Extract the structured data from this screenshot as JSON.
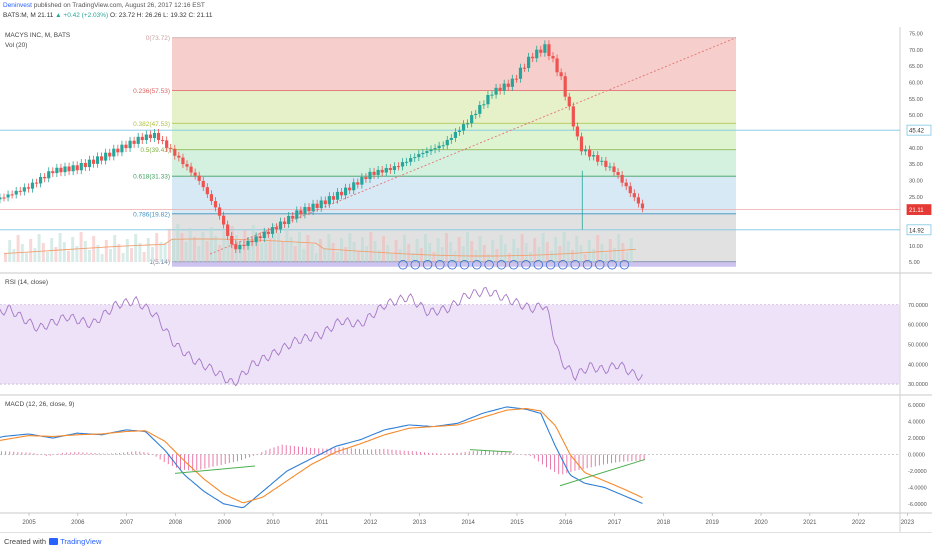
{
  "header": {
    "author": "Deninvest",
    "published_text": "published on TradingView.com, August 26, 2017 12:16 EST",
    "symbol": "BATS:M, M",
    "last": "21.11",
    "change": "▲ +0.42 (+2.03%)",
    "ohlc": "O: 23.72 H: 26.26 L: 19.32 C: 21.11"
  },
  "panes": {
    "price_title": "MACYS INC, M, BATS",
    "vol_title": "Vol (20)",
    "rsi_title": "RSI (14, close)",
    "macd_title": "MACD (12, 26, close, 9)"
  },
  "footer": {
    "created": "Created with",
    "brand": "TradingView"
  },
  "colors": {
    "up": "#26a69a",
    "down": "#ef5350",
    "rsi_line": "#a678c7",
    "rsi_band": "#e9dbf5",
    "macd_line": "#2f7fd6",
    "signal_line": "#f58a2c",
    "hist": "#e86ca0",
    "trend": "#4caf50",
    "h_line": "#7ec8e3",
    "price_marker": "#e53935"
  },
  "chart_data": [
    {
      "type": "candlestick",
      "title": "MACYS INC, M, BATS",
      "x_ticks": [
        "2005",
        "2006",
        "2007",
        "2008",
        "2009",
        "2010",
        "2011",
        "2012",
        "2013",
        "2014",
        "2015",
        "2016",
        "2017",
        "2018",
        "2019",
        "2020",
        "2021",
        "2022",
        "2023"
      ],
      "y_ticks": [
        5,
        10,
        15,
        20,
        25,
        30,
        35,
        40,
        45,
        50,
        55,
        60,
        65,
        70,
        75
      ],
      "ylim": [
        2,
        77
      ],
      "last_price": 21.11,
      "markers": [
        {
          "label": "45.42",
          "value": 45.42
        },
        {
          "label": "21.11",
          "value": 21.11
        },
        {
          "label": "14.92",
          "value": 14.92
        }
      ],
      "fib_levels": [
        {
          "label": "0(73.72)",
          "value": 73.72
        },
        {
          "label": "0.236(57.53)",
          "value": 57.53
        },
        {
          "label": "0.382(47.53)",
          "value": 47.53
        },
        {
          "label": "0.5(39.43)",
          "value": 39.43
        },
        {
          "label": "0.618(31.33)",
          "value": 31.33
        },
        {
          "label": "0.786(19.82)",
          "value": 19.82
        },
        {
          "label": "1(5.14)",
          "value": 5.14
        }
      ],
      "close_series": {
        "x": [
          2004.0,
          2004.5,
          2005.0,
          2005.5,
          2006.0,
          2006.5,
          2006.9,
          2007.3,
          2007.6,
          2008.0,
          2008.5,
          2008.9,
          2009.2,
          2009.5,
          2010.0,
          2010.5,
          2011.0,
          2011.5,
          2012.0,
          2012.5,
          2013.0,
          2013.5,
          2014.0,
          2014.5,
          2014.9,
          2015.3,
          2015.6,
          2015.9,
          2016.3,
          2016.7,
          2017.0,
          2017.3,
          2017.6
        ],
        "y": [
          23,
          25,
          28,
          33,
          34,
          37,
          40,
          43,
          44,
          38,
          30,
          20,
          9,
          11,
          15,
          20,
          23,
          27,
          32,
          34,
          38,
          41,
          48,
          57,
          60,
          68,
          71,
          62,
          40,
          36,
          33,
          27,
          21.1
        ]
      }
    },
    {
      "type": "bar",
      "title": "Vol (20)",
      "note": "volume histogram with 20-period moving average"
    },
    {
      "type": "line",
      "title": "RSI (14, close)",
      "y_ticks": [
        30,
        40,
        50,
        60,
        70
      ],
      "ylim": [
        25,
        85
      ],
      "band": [
        30,
        70
      ],
      "x": [
        2004.0,
        2004.6,
        2005.2,
        2005.8,
        2006.3,
        2006.8,
        2007.2,
        2007.6,
        2008.0,
        2008.4,
        2008.8,
        2009.2,
        2009.6,
        2010.0,
        2010.5,
        2011.0,
        2011.4,
        2011.8,
        2012.3,
        2012.8,
        2013.2,
        2013.6,
        2014.0,
        2014.4,
        2014.9,
        2015.3,
        2015.6,
        2015.9,
        2016.2,
        2016.5,
        2016.8,
        2017.1,
        2017.4,
        2017.6
      ],
      "y": [
        62,
        68,
        58,
        64,
        60,
        70,
        72,
        65,
        50,
        42,
        37,
        30,
        40,
        45,
        52,
        55,
        62,
        60,
        70,
        74,
        66,
        68,
        75,
        77,
        72,
        68,
        70,
        42,
        34,
        39,
        37,
        40,
        35,
        33
      ]
    },
    {
      "type": "line",
      "title": "MACD (12, 26, close, 9)",
      "y_ticks": [
        -6,
        -4,
        -2,
        0,
        2,
        4,
        6
      ],
      "ylim": [
        -7,
        7
      ],
      "x": [
        2004.0,
        2004.5,
        2005.0,
        2005.5,
        2006.0,
        2006.5,
        2007.0,
        2007.4,
        2007.8,
        2008.2,
        2008.6,
        2009.0,
        2009.4,
        2009.8,
        2010.3,
        2010.8,
        2011.3,
        2011.8,
        2012.3,
        2012.8,
        2013.3,
        2013.8,
        2014.3,
        2014.8,
        2015.2,
        2015.5,
        2015.8,
        2016.1,
        2016.4,
        2016.8,
        2017.2,
        2017.6
      ],
      "series": [
        {
          "name": "MACD",
          "values": [
            1.5,
            2.2,
            2.5,
            2.0,
            2.6,
            2.4,
            3.0,
            2.8,
            0.5,
            -2.5,
            -4.5,
            -6.0,
            -6.5,
            -4.5,
            -2.0,
            -0.5,
            1.0,
            1.8,
            3.0,
            3.6,
            3.4,
            3.8,
            5.0,
            5.8,
            5.5,
            5.0,
            1.0,
            -2.5,
            -3.5,
            -4.0,
            -5.0,
            -6.0
          ]
        },
        {
          "name": "Signal",
          "values": [
            1.2,
            1.8,
            2.3,
            2.2,
            2.4,
            2.5,
            2.8,
            2.9,
            1.6,
            -0.8,
            -3.0,
            -4.8,
            -5.9,
            -5.2,
            -3.2,
            -1.2,
            0.3,
            1.3,
            2.4,
            3.2,
            3.4,
            3.6,
            4.5,
            5.4,
            5.6,
            5.3,
            3.5,
            0.0,
            -2.2,
            -3.2,
            -4.2,
            -5.3
          ]
        }
      ],
      "histogram": {
        "x": [
          2004.2,
          2004.5,
          2004.8,
          2005.1,
          2005.4,
          2005.7,
          2006.0,
          2006.3,
          2006.6,
          2006.9,
          2007.2,
          2007.5,
          2007.8,
          2008.1,
          2008.4,
          2008.7,
          2009.0,
          2009.3,
          2009.6,
          2009.9,
          2010.2,
          2010.5,
          2010.8,
          2011.1,
          2011.4,
          2011.7,
          2012.0,
          2012.3,
          2012.6,
          2012.9,
          2013.2,
          2013.5,
          2013.8,
          2014.1,
          2014.4,
          2014.7,
          2015.0,
          2015.3,
          2015.6,
          2015.9,
          2016.2,
          2016.5,
          2016.8,
          2017.1,
          2017.4,
          2017.6
        ],
        "values": [
          0.3,
          0.4,
          0.3,
          0.2,
          -0.2,
          0.2,
          0.3,
          0.2,
          0.1,
          0.2,
          0.4,
          0.2,
          -1.0,
          -1.8,
          -2.0,
          -1.6,
          -1.2,
          -0.8,
          -0.2,
          0.6,
          1.2,
          1.0,
          0.8,
          0.7,
          0.9,
          0.7,
          0.6,
          0.7,
          0.5,
          0.4,
          0.2,
          0.1,
          0.2,
          0.4,
          0.5,
          0.4,
          0.1,
          -0.2,
          -1.5,
          -2.5,
          -2.0,
          -1.6,
          -1.2,
          -0.9,
          -0.8,
          -0.7
        ]
      }
    }
  ]
}
